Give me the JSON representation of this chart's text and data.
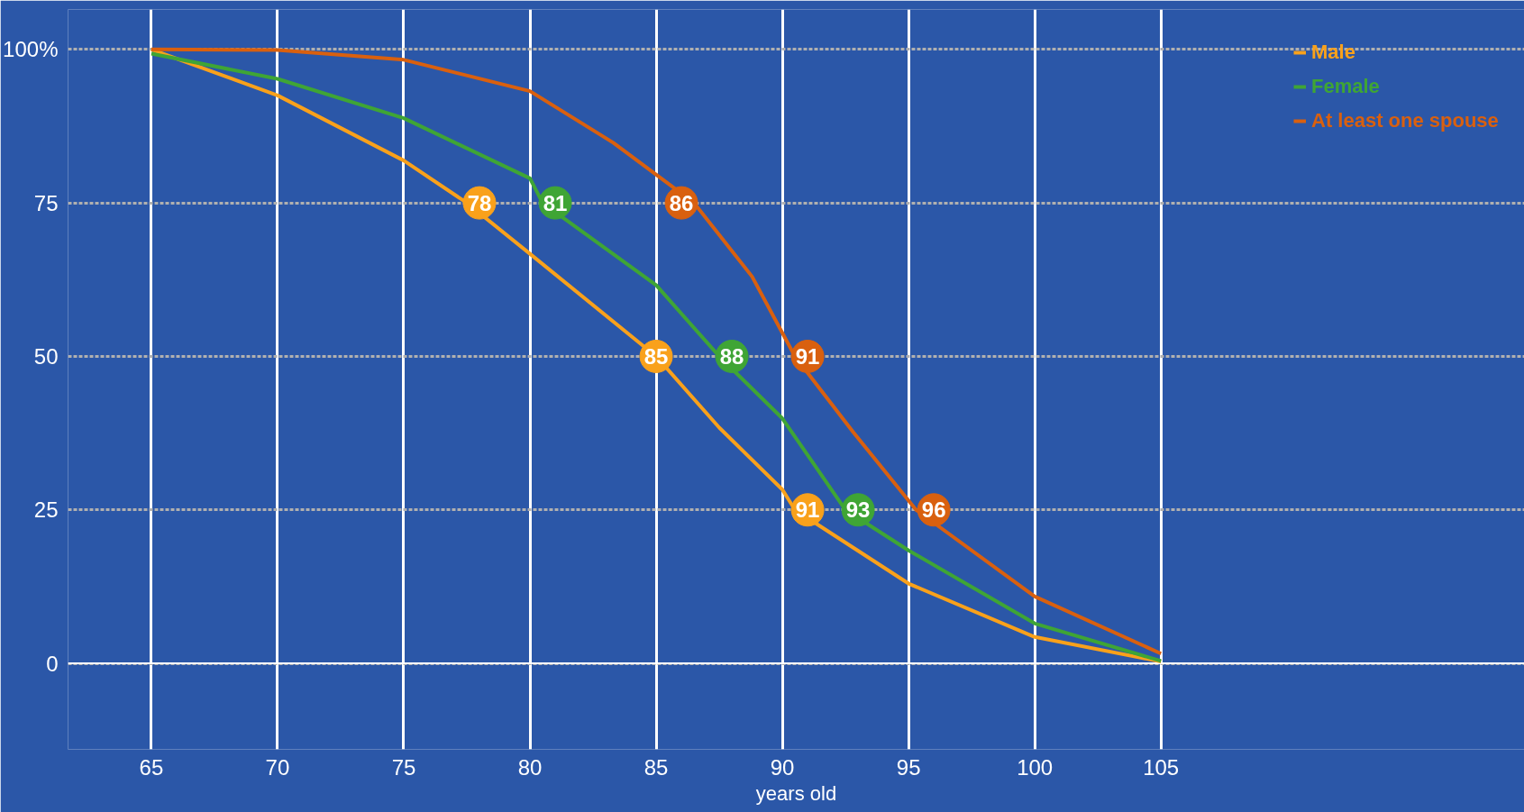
{
  "chart_data": {
    "type": "line",
    "xlabel": "years old",
    "xlim": [
      61.7,
      119.4
    ],
    "ylim": [
      -14,
      106.5
    ],
    "xticks": [
      65,
      70,
      75,
      80,
      85,
      90,
      95,
      100,
      105
    ],
    "yticks": [
      0,
      25,
      50,
      75,
      {
        "value": 100,
        "label": "100%"
      }
    ],
    "grid": true,
    "legend": "top right",
    "marker": "none",
    "line_style": "solid",
    "series": [
      {
        "name": "Male",
        "color": "#f9a11b",
        "x": [
          65,
          70,
          75,
          77.5,
          80,
          85,
          87.5,
          90,
          90.5,
          95,
          100,
          105
        ],
        "values": [
          100,
          92.5,
          81.9,
          75,
          66.7,
          50,
          38.4,
          28.3,
          25,
          13,
          4.3,
          0.3
        ]
      },
      {
        "name": "Female",
        "color": "#3fa535",
        "x": [
          65,
          70,
          75,
          80,
          80.5,
          85,
          87.5,
          90,
          92.5,
          95,
          100,
          105
        ],
        "values": [
          99.3,
          95.2,
          88.8,
          79,
          75,
          61.6,
          50,
          39.9,
          25,
          18.4,
          6.5,
          0.4
        ]
      },
      {
        "name": "At least one spouse",
        "color": "#d9600f",
        "x": [
          65,
          70,
          75,
          80,
          83.3,
          86.5,
          88.8,
          90.5,
          92.8,
          95.3,
          100,
          105
        ],
        "values": [
          100,
          99.9,
          98.3,
          93.2,
          84.8,
          75,
          63,
          50,
          37.7,
          25,
          10.9,
          1.6
        ]
      },
      {
        "type": "scatter",
        "marker": "circle",
        "color": "#f9a11b",
        "x": [
          78,
          85,
          91
        ],
        "values": [
          75,
          50,
          25
        ]
      },
      {
        "type": "scatter",
        "marker": "circle",
        "color": "#3fa535",
        "x": [
          81,
          88,
          93
        ],
        "values": [
          75,
          50,
          25
        ]
      },
      {
        "type": "scatter",
        "marker": "circle",
        "color": "#d9600f",
        "x": [
          86,
          91,
          96
        ],
        "values": [
          75,
          50,
          25
        ]
      }
    ],
    "annotations": [
      {
        "text": "78",
        "x": 78,
        "y": 75
      },
      {
        "text": "81",
        "x": 81,
        "y": 75
      },
      {
        "text": "86",
        "x": 86,
        "y": 75
      },
      {
        "text": "85",
        "x": 85,
        "y": 50
      },
      {
        "text": "88",
        "x": 88,
        "y": 50
      },
      {
        "text": "91",
        "x": 91,
        "y": 50
      },
      {
        "text": "91",
        "x": 91,
        "y": 25
      },
      {
        "text": "93",
        "x": 93,
        "y": 25
      },
      {
        "text": "96",
        "x": 96,
        "y": 25
      }
    ]
  }
}
